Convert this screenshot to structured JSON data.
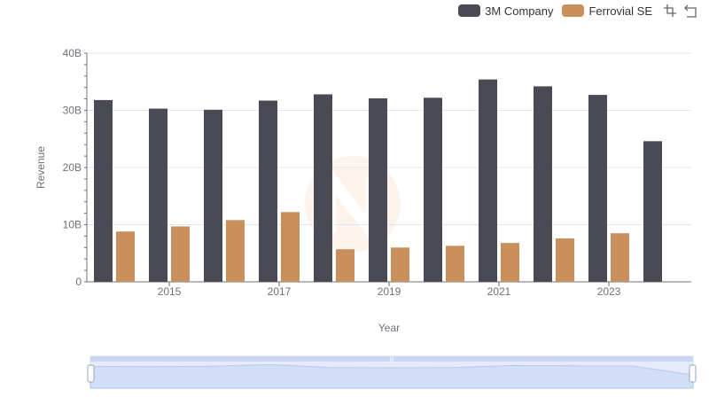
{
  "legend": {
    "items": [
      {
        "label": "3M Company",
        "color": "#4a4a55"
      },
      {
        "label": "Ferrovial SE",
        "color": "#c98f5c"
      }
    ]
  },
  "toolbox": {
    "icons": [
      "zoom-icon",
      "restore-icon"
    ]
  },
  "chart_data": {
    "type": "bar",
    "xlabel": "Year",
    "ylabel": "Revenue",
    "ylim": [
      0,
      40000000000
    ],
    "yticks": [
      "0",
      "10B",
      "20B",
      "30B",
      "40B"
    ],
    "xtick_labels": [
      "2015",
      "2017",
      "2019",
      "2021",
      "2023"
    ],
    "categories": [
      "2014",
      "2015",
      "2016",
      "2017",
      "2018",
      "2019",
      "2020",
      "2021",
      "2022",
      "2023",
      "2024"
    ],
    "series": [
      {
        "name": "3M Company",
        "color": "#4a4a55",
        "values": [
          31800000000,
          30300000000,
          30100000000,
          31700000000,
          32800000000,
          32100000000,
          32200000000,
          35400000000,
          34200000000,
          32700000000,
          24600000000
        ]
      },
      {
        "name": "Ferrovial SE",
        "color": "#c98f5c",
        "values": [
          8800000000,
          9700000000,
          10800000000,
          12200000000,
          5700000000,
          6000000000,
          6300000000,
          6800000000,
          7600000000,
          8500000000,
          null
        ]
      }
    ],
    "grid": true,
    "legend_position": "top-right",
    "datazoom": {
      "range": [
        0,
        100
      ]
    }
  }
}
